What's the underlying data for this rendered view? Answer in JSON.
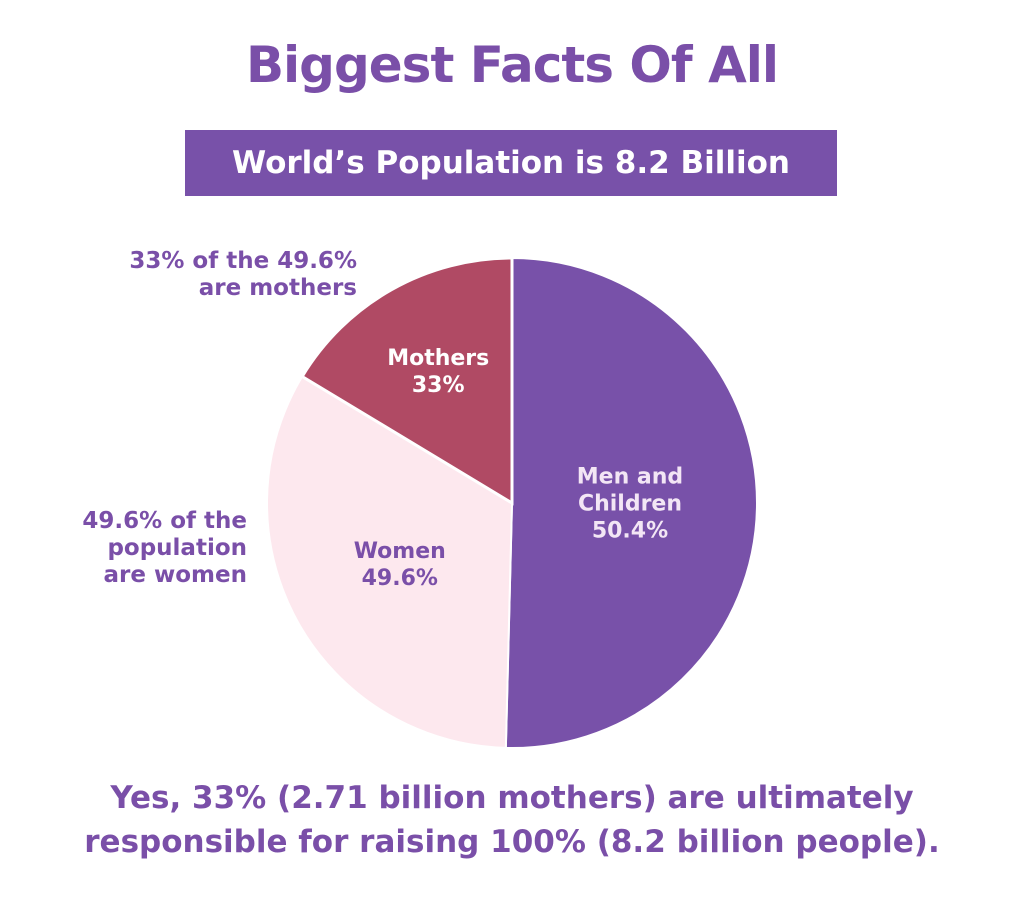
{
  "chart_data": {
    "type": "pie",
    "title": "Biggest Facts Of All",
    "subtitle": "World’s Population is 8.2 Billion",
    "categories": [
      "Men and Children",
      "Women"
    ],
    "values": [
      50.4,
      49.6
    ],
    "value_labels": [
      "50.4%",
      "49.6%"
    ],
    "colors": [
      "#7851a9",
      "#fde8ee"
    ],
    "sub_slice": {
      "name": "Mothers",
      "value": 33,
      "value_label": "33%",
      "color": "#b04a64"
    },
    "annotations": [
      {
        "lines": [
          "33% of the 49.6%",
          "are mothers"
        ]
      },
      {
        "lines": [
          "49.6% of the",
          "population",
          "are women"
        ]
      }
    ],
    "footer": [
      "Yes, 33% (2.71 billion mothers) are ultimately",
      "responsible for raising 100% (8.2 billion people)."
    ]
  }
}
